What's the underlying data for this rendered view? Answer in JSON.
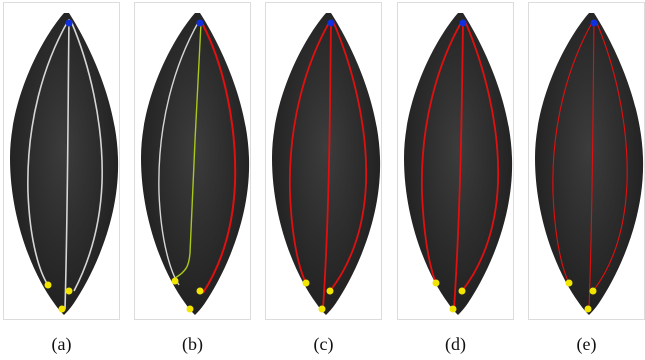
{
  "figure": {
    "panels": [
      {
        "label": "(a)",
        "mode": "raw"
      },
      {
        "label": "(b)",
        "mode": "partial"
      },
      {
        "label": "(c)",
        "mode": "full"
      },
      {
        "label": "(d)",
        "mode": "full"
      },
      {
        "label": "(e)",
        "mode": "thin"
      }
    ]
  },
  "colors": {
    "leaf": "#2a2a2a",
    "vein_raw": "#d6d6d6",
    "vein_traced": "#e01010",
    "vein_green": "#a8c81a",
    "seed_yellow": "#f2e600",
    "seed_blue": "#1030e0"
  }
}
